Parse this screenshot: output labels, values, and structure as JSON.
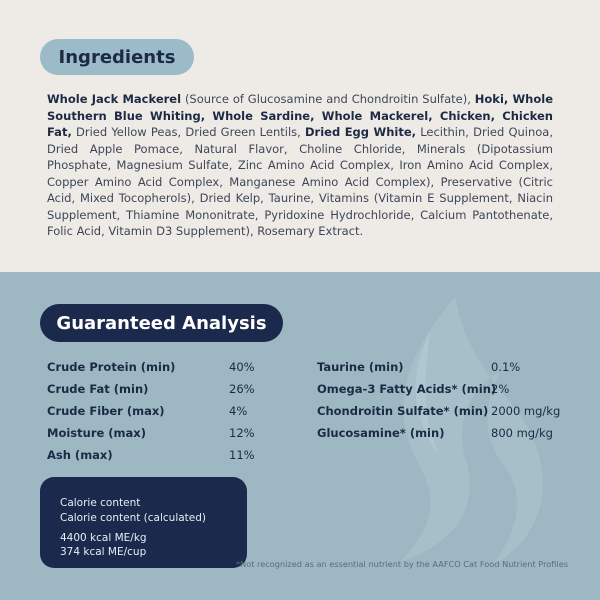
{
  "ingredients": {
    "title": "Ingredients",
    "segments": [
      {
        "text": "Whole Jack Mackerel",
        "bold": true
      },
      {
        "text": " (Source of Glucosamine and Chondroitin Sulfate), ",
        "bold": false
      },
      {
        "text": "Hoki, Whole Southern Blue Whiting, Whole Sardine, Whole Mackerel, Chicken, Chicken Fat,",
        "bold": true
      },
      {
        "text": " Dried Yellow Peas, Dried Green Lentils, ",
        "bold": false
      },
      {
        "text": "Dried Egg White,",
        "bold": true
      },
      {
        "text": " Lecithin, Dried Quinoa, Dried Apple Pomace, Natural Flavor, Choline Chloride, Minerals (Dipotassium Phosphate, Magnesium Sulfate, Zinc Amino Acid Complex, Iron Amino Acid Complex, Copper Amino Acid Complex, Manganese Amino Acid Complex), Preservative (Citric Acid, Mixed Tocopherols), Dried Kelp, Taurine, Vitamins (Vitamin E Supplement, Niacin Supplement, Thiamine Mononitrate, Pyridoxine Hydrochloride, Calcium Pantothenate, Folic Acid, Vitamin D3 Supplement), Rosemary Extract.",
        "bold": false
      }
    ]
  },
  "analysis": {
    "title": "Guaranteed Analysis",
    "left": [
      {
        "label": "Crude Protein (min)",
        "value": "40%"
      },
      {
        "label": "Crude Fat (min)",
        "value": "26%"
      },
      {
        "label": "Crude Fiber (max)",
        "value": "4%"
      },
      {
        "label": "Moisture (max)",
        "value": "12%"
      },
      {
        "label": "Ash (max)",
        "value": "11%"
      }
    ],
    "right": [
      {
        "label": "Taurine (min)",
        "value": "0.1%"
      },
      {
        "label": "Omega-3 Fatty Acids* (min)",
        "value": "2%"
      },
      {
        "label": "Chondroitin Sulfate* (min)",
        "value": "2000 mg/kg"
      },
      {
        "label": "Glucosamine* (min)",
        "value": "800 mg/kg"
      }
    ]
  },
  "calorie": {
    "line1": "Calorie content",
    "line2": "Calorie content (calculated)",
    "line3": "4400 kcal ME/kg",
    "line4": "374 kcal ME/cup"
  },
  "footnote": "*Not recognized as an essential nutrient by the AAFCO Cat Food Nutrient Profiles",
  "colors": {
    "top_bg": "#eeebe6",
    "bottom_bg": "#9db8c3",
    "navy": "#1b2a4c",
    "light_blue_pill": "#9bbbc8"
  },
  "icons": {
    "decoration": "flame-icon"
  }
}
